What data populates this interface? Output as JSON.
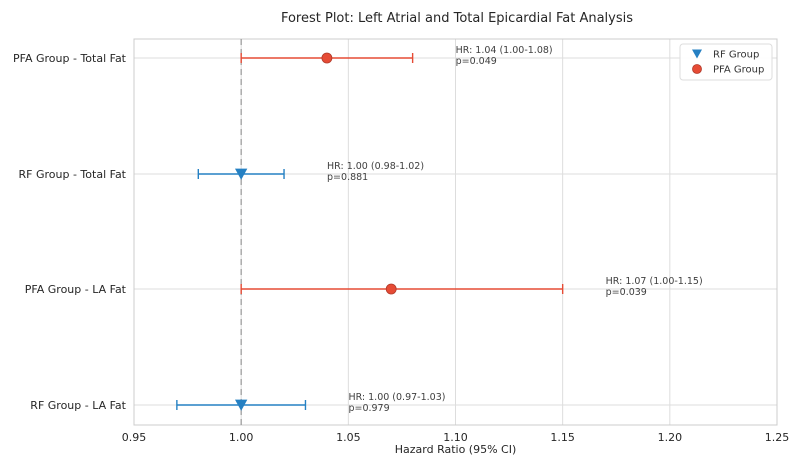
{
  "chart_data": {
    "type": "forest",
    "title": "Forest Plot: Left Atrial and Total Epicardial Fat Analysis",
    "xlabel": "Hazard Ratio (95% CI)",
    "xlim": [
      0.95,
      1.25
    ],
    "xticks": [
      "0.95",
      "1.00",
      "1.05",
      "1.10",
      "1.15",
      "1.20",
      "1.25"
    ],
    "xtick_values": [
      0.95,
      1.0,
      1.05,
      1.1,
      1.15,
      1.2,
      1.25
    ],
    "reference_line": 1.0,
    "grid": true,
    "legend_position": "top-right",
    "legend": [
      {
        "name": "RF Group",
        "marker": "triangle-down",
        "color": "#2580c3"
      },
      {
        "name": "PFA Group",
        "marker": "circle",
        "color": "#e64b35"
      }
    ],
    "rows": [
      {
        "label": "PFA Group - Total Fat",
        "group": "PFA Group",
        "hr": 1.04,
        "ci_low": 1.0,
        "ci_high": 1.08,
        "annotation_hr": "HR: 1.04 (1.00-1.08)",
        "annotation_p": "p=0.049"
      },
      {
        "label": "RF Group - Total Fat",
        "group": "RF Group",
        "hr": 1.0,
        "ci_low": 0.98,
        "ci_high": 1.02,
        "annotation_hr": "HR: 1.00 (0.98-1.02)",
        "annotation_p": "p=0.881"
      },
      {
        "label": "PFA Group - LA Fat",
        "group": "PFA Group",
        "hr": 1.07,
        "ci_low": 1.0,
        "ci_high": 1.15,
        "annotation_hr": "HR: 1.07 (1.00-1.15)",
        "annotation_p": "p=0.039"
      },
      {
        "label": "RF Group - LA Fat",
        "group": "RF Group",
        "hr": 1.0,
        "ci_low": 0.97,
        "ci_high": 1.03,
        "annotation_hr": "HR: 1.00 (0.97-1.03)",
        "annotation_p": "p=0.979"
      }
    ]
  }
}
